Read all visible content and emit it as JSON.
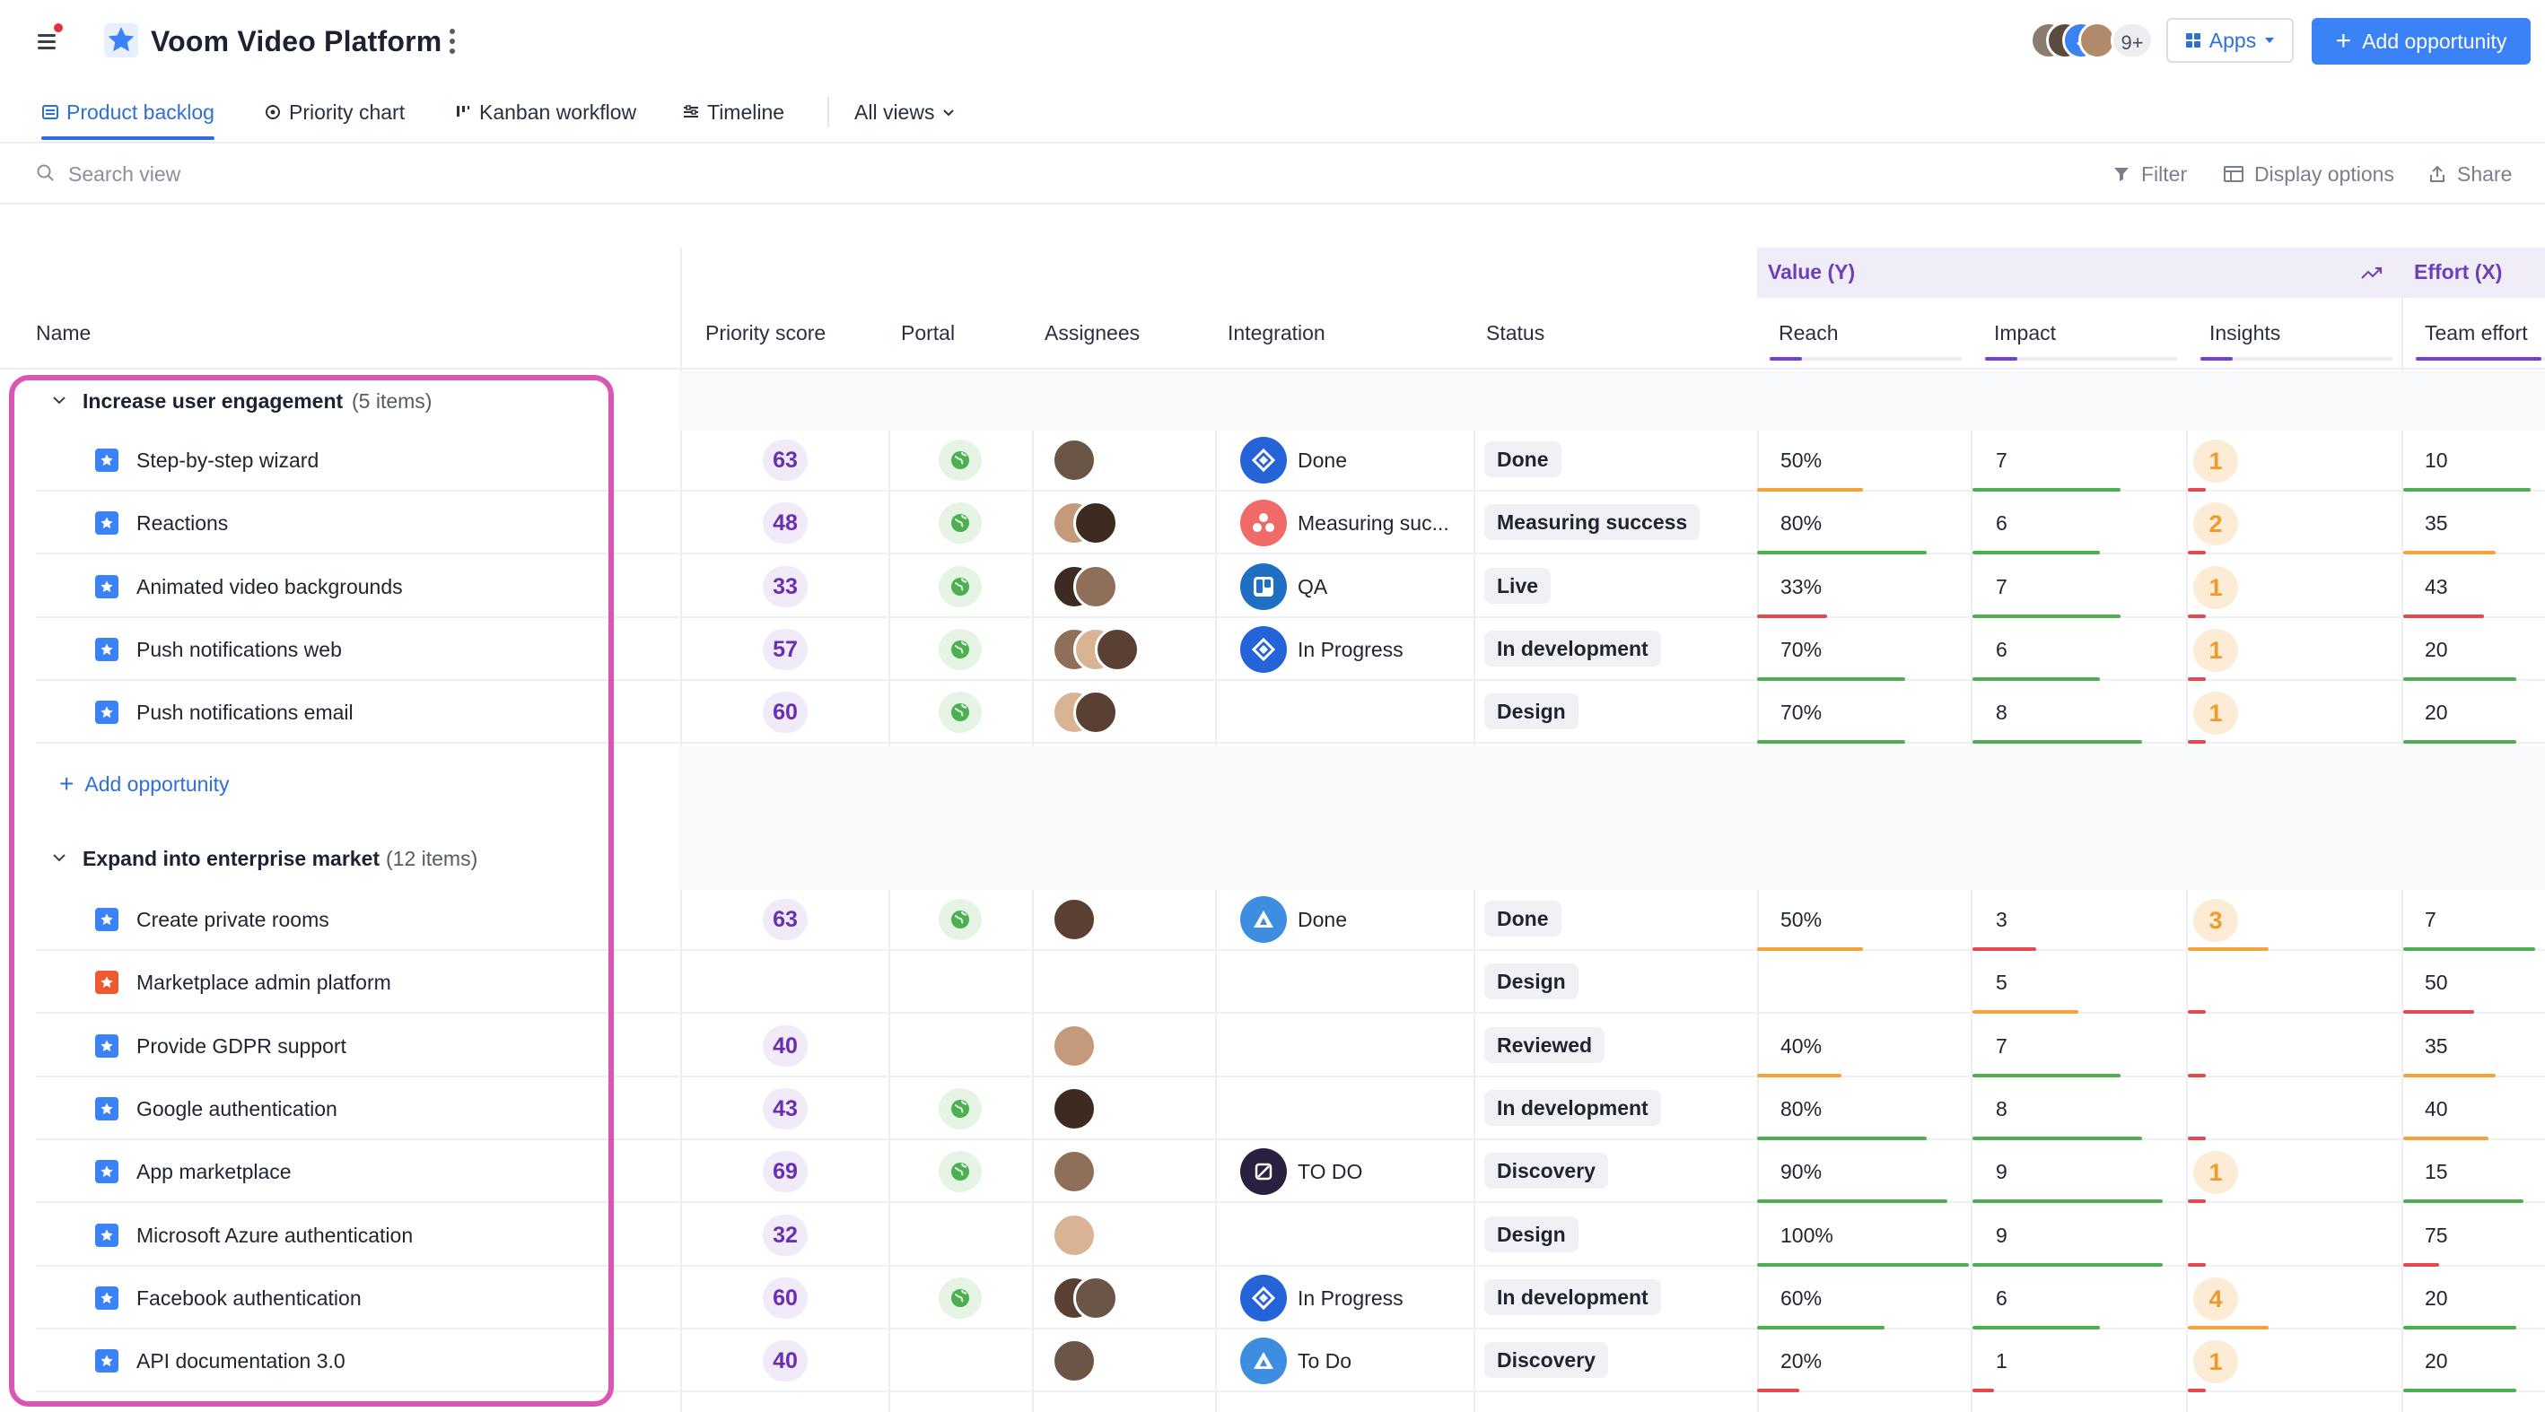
{
  "header": {
    "title": "Voom Video Platform",
    "more_count": "9+",
    "apps_label": "Apps",
    "add_label": "Add opportunity"
  },
  "tabs": [
    {
      "label": "Product backlog",
      "active": true
    },
    {
      "label": "Priority chart"
    },
    {
      "label": "Kanban workflow"
    },
    {
      "label": "Timeline"
    },
    {
      "label": "All views"
    }
  ],
  "search": {
    "placeholder": "Search view"
  },
  "tools": {
    "filter": "Filter",
    "display": "Display options",
    "share": "Share"
  },
  "columns": {
    "name": "Name",
    "priority": "Priority score",
    "portal": "Portal",
    "assignees": "Assignees",
    "integration": "Integration",
    "status": "Status",
    "value_group": "Value (Y)",
    "effort_group": "Effort (X)",
    "reach": "Reach",
    "impact": "Impact",
    "insights": "Insights",
    "team_effort": "Team effort"
  },
  "colors": {
    "accent": "#3b82f6",
    "purple": "#6a2fb0",
    "highlight": "#d957b3",
    "green": "#4caf50",
    "orange": "#f5a23a",
    "red": "#e5484d"
  },
  "groups": [
    {
      "title": "Increase user engagement",
      "count": "(5 items)",
      "add_label": "Add opportunity",
      "items": [
        {
          "name": "Step-by-step wizard",
          "score": "63",
          "portal": true,
          "assignees": 1,
          "integration": {
            "icon": "jira-icon",
            "label": "Done"
          },
          "status": "Done",
          "reach": "50%",
          "impact": "7",
          "insight": "1",
          "effort": "10"
        },
        {
          "name": "Reactions",
          "score": "48",
          "portal": true,
          "assignees": 2,
          "integration": {
            "icon": "asana-icon",
            "label": "Measuring suc..."
          },
          "status": "Measuring success",
          "reach": "80%",
          "impact": "6",
          "insight": "2",
          "effort": "35"
        },
        {
          "name": "Animated video backgrounds",
          "score": "33",
          "portal": true,
          "assignees": 2,
          "integration": {
            "icon": "trello-icon",
            "label": "QA"
          },
          "status": "Live",
          "reach": "33%",
          "impact": "7",
          "insight": "1",
          "effort": "43"
        },
        {
          "name": "Push notifications web",
          "score": "57",
          "portal": true,
          "assignees": 3,
          "integration": {
            "icon": "jira-icon",
            "label": "In Progress"
          },
          "status": "In development",
          "reach": "70%",
          "impact": "6",
          "insight": "1",
          "effort": "20"
        },
        {
          "name": "Push notifications email",
          "score": "60",
          "portal": true,
          "assignees": 2,
          "integration": null,
          "status": "Design",
          "reach": "70%",
          "impact": "8",
          "insight": "1",
          "effort": "20"
        }
      ]
    },
    {
      "title": "Expand into enterprise market",
      "count": "(12 items)",
      "items": [
        {
          "name": "Create private rooms",
          "score": "63",
          "portal": true,
          "assignees": 1,
          "integration": {
            "icon": "azure-devops-icon",
            "label": "Done"
          },
          "status": "Done",
          "reach": "50%",
          "impact": "3",
          "insight": "3",
          "effort": "7"
        },
        {
          "name": "Marketplace admin platform",
          "score": "",
          "portal": false,
          "assignees": 0,
          "integration": null,
          "status": "Design",
          "reach": "",
          "impact": "5",
          "insight": "",
          "effort": "50",
          "orange": true
        },
        {
          "name": "Provide GDPR support",
          "score": "40",
          "portal": false,
          "assignees": 1,
          "integration": null,
          "status": "Reviewed",
          "reach": "40%",
          "impact": "7",
          "insight": "",
          "effort": "35"
        },
        {
          "name": "Google authentication",
          "score": "43",
          "portal": true,
          "assignees": 1,
          "integration": null,
          "status": "In development",
          "reach": "80%",
          "impact": "8",
          "insight": "",
          "effort": "40"
        },
        {
          "name": "App marketplace",
          "score": "69",
          "portal": true,
          "assignees": 1,
          "integration": {
            "icon": "shortcut-icon",
            "label": "TO DO"
          },
          "status": "Discovery",
          "reach": "90%",
          "impact": "9",
          "insight": "1",
          "effort": "15"
        },
        {
          "name": "Microsoft Azure authentication",
          "score": "32",
          "portal": false,
          "assignees": 1,
          "integration": null,
          "status": "Design",
          "reach": "100%",
          "impact": "9",
          "insight": "",
          "effort": "75"
        },
        {
          "name": "Facebook authentication",
          "score": "60",
          "portal": true,
          "assignees": 2,
          "integration": {
            "icon": "jira-icon",
            "label": "In Progress"
          },
          "status": "In development",
          "reach": "60%",
          "impact": "6",
          "insight": "4",
          "effort": "20"
        },
        {
          "name": "API documentation 3.0",
          "score": "40",
          "portal": false,
          "assignees": 1,
          "integration": {
            "icon": "azure-devops-icon",
            "label": "To Do"
          },
          "status": "Discovery",
          "reach": "20%",
          "impact": "1",
          "insight": "1",
          "effort": "20"
        }
      ]
    }
  ]
}
